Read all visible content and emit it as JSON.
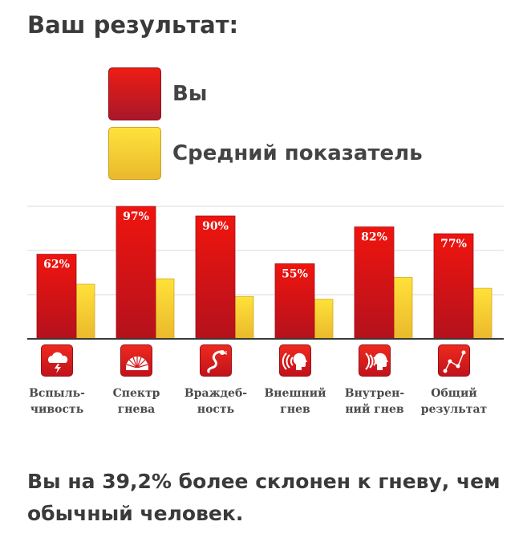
{
  "page": {
    "title": "Ваш результат:",
    "summary": "Вы на 39,2% более склонен к гневу, чем обычный человек."
  },
  "legend": {
    "you": {
      "label": "Вы",
      "color": "#e8141a"
    },
    "average": {
      "label": "Средний показатель",
      "color": "#f6cf32"
    }
  },
  "chart_data": {
    "type": "bar",
    "categories": [
      {
        "line1": "Вспыль-",
        "line2": "чивость",
        "icon": "lightning-cloud-icon"
      },
      {
        "line1": "Спектр",
        "line2": "гнева",
        "icon": "spectrum-fan-icon"
      },
      {
        "line1": "Враждеб-",
        "line2": "ность",
        "icon": "serpent-icon"
      },
      {
        "line1": "Внешний",
        "line2": "гнев",
        "icon": "outward-shout-icon"
      },
      {
        "line1": "Внутрен-",
        "line2": "ний гнев",
        "icon": "inward-shout-icon"
      },
      {
        "line1": "Общий",
        "line2": "результат",
        "icon": "connected-dots-icon"
      }
    ],
    "series": [
      {
        "name": "Вы",
        "color": "#e8141a",
        "values": [
          62,
          97,
          90,
          55,
          82,
          77
        ],
        "labels": [
          "62%",
          "97%",
          "90%",
          "55%",
          "82%",
          "77%"
        ]
      },
      {
        "name": "Средний показатель",
        "color": "#f6cf32",
        "values": [
          40,
          44,
          31,
          29,
          45,
          37
        ]
      }
    ],
    "ylim": [
      0,
      100
    ],
    "grid": true,
    "legend_position": "top"
  }
}
